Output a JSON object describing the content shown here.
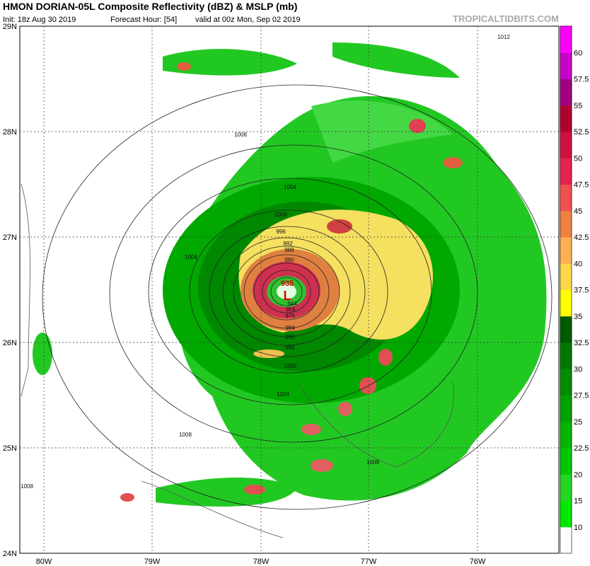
{
  "header": {
    "title": "HMON DORIAN-05L Composite Reflectivity (dBZ) & MSLP (mb)",
    "init": "Init: 18z Aug 30 2019",
    "forecast_hour": "Forecast Hour: [54]",
    "valid": "valid at 00z Mon, Sep 02 2019",
    "watermark": "TROPICALTIDBITS.COM"
  },
  "map": {
    "lat_labels": [
      "29N",
      "28N",
      "27N",
      "26N",
      "25N",
      "24N"
    ],
    "lon_labels": [
      "80W",
      "79W",
      "78W",
      "77W",
      "76W"
    ],
    "isobar_labels": [
      "1012",
      "1008",
      "1008",
      "1004",
      "1004",
      "1000",
      "996",
      "992",
      "988",
      "980",
      "944",
      "956",
      "976",
      "984",
      "992",
      "996",
      "1000",
      "1004",
      "1008",
      "1008"
    ],
    "low_label": "L",
    "low_pressure": "935"
  },
  "colorbar": {
    "labels": [
      "10",
      "15",
      "20",
      "22.5",
      "25",
      "27.5",
      "30",
      "32.5",
      "35",
      "37.5",
      "40",
      "42.5",
      "45",
      "47.5",
      "50",
      "52.5",
      "55",
      "57.5",
      "60"
    ],
    "colors": [
      "#ffffff",
      "#00e800",
      "#22d822",
      "#00c800",
      "#00b400",
      "#00a000",
      "#008c00",
      "#007800",
      "#005a00",
      "#ffff00",
      "#ffd848",
      "#ffb050",
      "#f08040",
      "#f05050",
      "#e82050",
      "#d01040",
      "#b00030",
      "#a00080",
      "#c800c8",
      "#ff00ff"
    ]
  }
}
